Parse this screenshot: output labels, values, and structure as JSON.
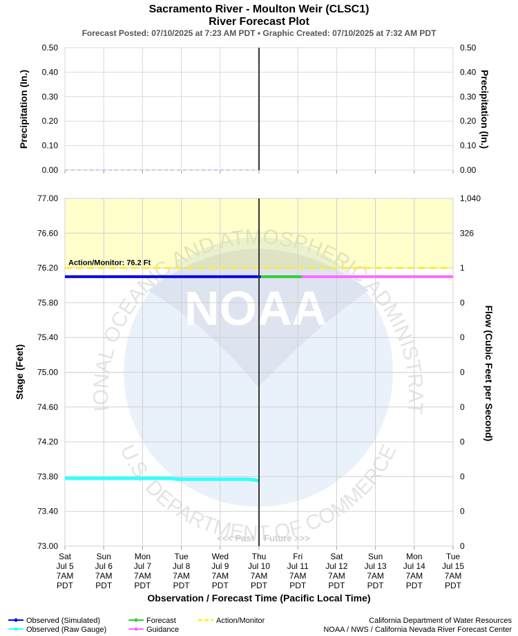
{
  "header": {
    "title_line1": "Sacramento River - Moulton Weir (CLSC1)",
    "title_line2": "River Forecast Plot",
    "subtitle": "Forecast Posted: 07/10/2025 at 7:23 AM PDT  •  Graphic Created: 07/10/2025 at 7:32 AM PDT"
  },
  "colors": {
    "observed_simulated": "#0000ee",
    "observed_raw": "#33ffff",
    "forecast": "#33cc33",
    "guidance": "#ff66ff",
    "action": "#ffee33",
    "action_fill": "#ffffcc",
    "now_line": "#333333",
    "precip": "#aaaaee"
  },
  "labels": {
    "action_monitor": "Action/Monitor: 76.2 Ft",
    "past": "<<< Past",
    "future": "Future >>>"
  },
  "chart_data": [
    {
      "type": "line",
      "ylabel": "Precipitation (In.)",
      "y2label": "Precipitation (In.)",
      "ylim": [
        0,
        0.5
      ],
      "yticks": [
        "0.50",
        "0.40",
        "0.30",
        "0.20",
        "0.10",
        "0.00"
      ],
      "y2ticks": [
        "0.50",
        "0.40",
        "0.30",
        "0.20",
        "0.10",
        "0.00"
      ],
      "xlim": [
        "Jul 5 7AM",
        "Jul 15 7AM"
      ],
      "grid": true,
      "series": [
        {
          "name": "Observed",
          "start_day": 0,
          "end_day": 5,
          "values": [
            0.0,
            0.0
          ]
        }
      ]
    },
    {
      "type": "line",
      "ylabel": "Stage (Feet)",
      "y2label": "Flow (Cubic Feet per Second)",
      "ylim": [
        73.0,
        77.0
      ],
      "yticks": [
        "77.00",
        "76.60",
        "76.20",
        "75.80",
        "75.40",
        "75.00",
        "74.60",
        "74.20",
        "73.80",
        "73.40",
        "73.00"
      ],
      "y2ticks": [
        "1,040",
        "326",
        "1",
        "0",
        "0",
        "0",
        "0",
        "0",
        "0",
        "0",
        "0"
      ],
      "xlabel": "Observation / Forecast Time (Pacific Local Time)",
      "x_days": [
        [
          "Sat",
          "Jul 5",
          "7AM",
          "PDT"
        ],
        [
          "Sun",
          "Jul 6",
          "7AM",
          "PDT"
        ],
        [
          "Mon",
          "Jul 7",
          "7AM",
          "PDT"
        ],
        [
          "Tue",
          "Jul 8",
          "7AM",
          "PDT"
        ],
        [
          "Wed",
          "Jul 9",
          "7AM",
          "PDT"
        ],
        [
          "Thu",
          "Jul 10",
          "7AM",
          "PDT"
        ],
        [
          "Fri",
          "Jul 11",
          "7AM",
          "PDT"
        ],
        [
          "Sat",
          "Jul 12",
          "7AM",
          "PDT"
        ],
        [
          "Sun",
          "Jul 13",
          "7AM",
          "PDT"
        ],
        [
          "Mon",
          "Jul 14",
          "7AM",
          "PDT"
        ],
        [
          "Tue",
          "Jul 15",
          "7AM",
          "PDT"
        ]
      ],
      "now_day": 5,
      "action_stage": 76.2,
      "grid": true,
      "series": [
        {
          "name": "Observed (Simulated)",
          "points": [
            [
              0,
              76.1
            ],
            [
              5.05,
              76.1
            ]
          ]
        },
        {
          "name": "Forecast",
          "points": [
            [
              5.05,
              76.1
            ],
            [
              6.1,
              76.1
            ]
          ]
        },
        {
          "name": "Guidance",
          "points": [
            [
              6.1,
              76.1
            ],
            [
              10.0,
              76.1
            ]
          ]
        },
        {
          "name": "Observed (Raw Gauge)",
          "points": [
            [
              0,
              73.78
            ],
            [
              2.7,
              73.78
            ],
            [
              2.9,
              73.77
            ],
            [
              4.7,
              73.77
            ],
            [
              4.9,
              73.76
            ],
            [
              5.0,
              73.75
            ]
          ]
        }
      ]
    }
  ],
  "legend": [
    {
      "label": "Observed (Simulated)",
      "color": "#0000ee",
      "style": "marker"
    },
    {
      "label": "Observed (Raw Gauge)",
      "color": "#33ffff",
      "style": "marker"
    },
    {
      "label": "Forecast",
      "color": "#33cc33",
      "style": "marker"
    },
    {
      "label": "Guidance",
      "color": "#ff66ff",
      "style": "marker"
    },
    {
      "label": "Action/Monitor",
      "color": "#ffee33",
      "style": "dash"
    }
  ],
  "credits": {
    "line1": "California Department of Water Resources",
    "line2": "NOAA / NWS / California Nevada River Forecast Center"
  },
  "watermark": {
    "text_top": "NATIONAL OCEANIC AND ATMOSPHERIC ADMINISTRATION",
    "text_bottom": "U.S. DEPARTMENT OF COMMERCE",
    "logo_text": "NOAA"
  }
}
